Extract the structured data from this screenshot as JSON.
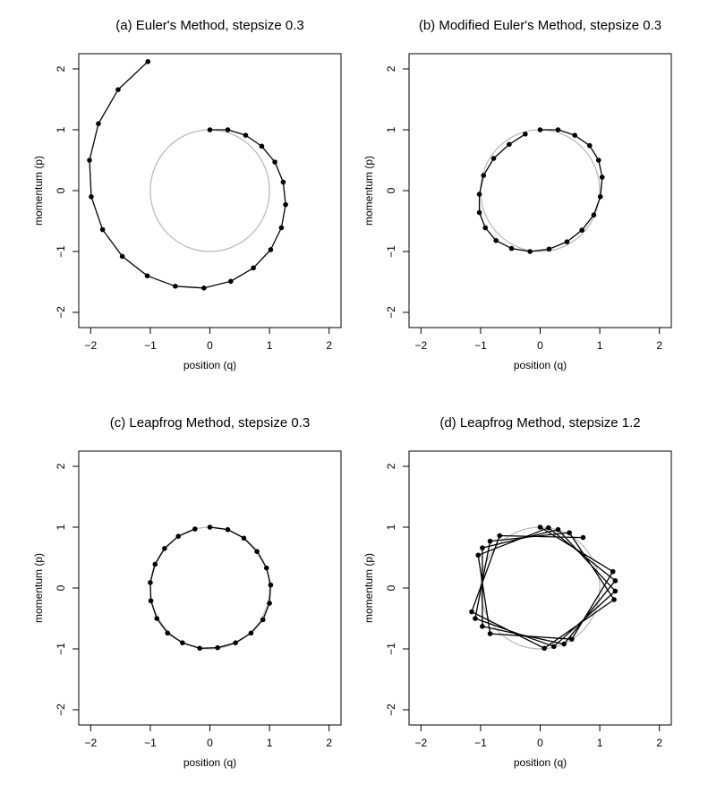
{
  "chart_data": [
    {
      "type": "line",
      "title": "(a) Euler's Method, stepsize 0.3",
      "xlabel": "position (q)",
      "ylabel": "momentum (p)",
      "xlim": [
        -2.2,
        2.2
      ],
      "ylim": [
        -2.25,
        2.25
      ],
      "x_ticks": [
        -2,
        -1,
        0,
        1,
        2
      ],
      "y_ticks": [
        -2,
        -1,
        0,
        1,
        2
      ],
      "x_tick_labels": [
        "−2",
        "−1",
        "0",
        "1",
        "2"
      ],
      "y_tick_labels": [
        "−2",
        "−1",
        "0",
        "1",
        "2"
      ],
      "reference_circle": {
        "radius": 1,
        "color": "#bbbbbb"
      },
      "series": [
        {
          "color": "#000000",
          "points": [
            [
              0.0,
              1.0
            ],
            [
              0.3,
              1.0
            ],
            [
              0.6,
              0.91
            ],
            [
              0.87,
              0.73
            ],
            [
              1.09,
              0.47
            ],
            [
              1.23,
              0.14
            ],
            [
              1.27,
              -0.23
            ],
            [
              1.2,
              -0.61
            ],
            [
              1.02,
              -0.97
            ],
            [
              0.73,
              -1.27
            ],
            [
              0.35,
              -1.49
            ],
            [
              -0.1,
              -1.6
            ],
            [
              -0.58,
              -1.57
            ],
            [
              -1.05,
              -1.4
            ],
            [
              -1.47,
              -1.08
            ],
            [
              -1.8,
              -0.64
            ],
            [
              -1.99,
              -0.1
            ],
            [
              -2.02,
              0.5
            ],
            [
              -1.87,
              1.1
            ],
            [
              -1.54,
              1.66
            ],
            [
              -1.04,
              2.12
            ]
          ]
        }
      ]
    },
    {
      "type": "line",
      "title": "(b) Modified Euler's Method, stepsize 0.3",
      "xlabel": "position (q)",
      "ylabel": "momentum (p)",
      "xlim": [
        -2.2,
        2.2
      ],
      "ylim": [
        -2.25,
        2.25
      ],
      "x_ticks": [
        -2,
        -1,
        0,
        1,
        2
      ],
      "y_ticks": [
        -2,
        -1,
        0,
        1,
        2
      ],
      "x_tick_labels": [
        "−2",
        "−1",
        "0",
        "1",
        "2"
      ],
      "y_tick_labels": [
        "−2",
        "−1",
        "0",
        "1",
        "2"
      ],
      "reference_circle": {
        "radius": 1,
        "color": "#bbbbbb"
      },
      "series": [
        {
          "color": "#000000",
          "points": [
            [
              0.0,
              1.0
            ],
            [
              0.3,
              1.0
            ],
            [
              0.58,
              0.91
            ],
            [
              0.83,
              0.74
            ],
            [
              0.98,
              0.5
            ],
            [
              1.04,
              0.22
            ],
            [
              1.01,
              -0.1
            ],
            [
              0.9,
              -0.4
            ],
            [
              0.7,
              -0.65
            ],
            [
              0.45,
              -0.84
            ],
            [
              0.15,
              -0.96
            ],
            [
              -0.17,
              -1.0
            ],
            [
              -0.48,
              -0.95
            ],
            [
              -0.74,
              -0.82
            ],
            [
              -0.92,
              -0.61
            ],
            [
              -1.02,
              -0.36
            ],
            [
              -1.02,
              -0.06
            ],
            [
              -0.95,
              0.25
            ],
            [
              -0.78,
              0.53
            ],
            [
              -0.52,
              0.76
            ],
            [
              -0.25,
              0.93
            ]
          ]
        }
      ]
    },
    {
      "type": "line",
      "title": "(c) Leapfrog Method, stepsize 0.3",
      "xlabel": "position (q)",
      "ylabel": "momentum (p)",
      "xlim": [
        -2.2,
        2.2
      ],
      "ylim": [
        -2.25,
        2.25
      ],
      "x_ticks": [
        -2,
        -1,
        0,
        1,
        2
      ],
      "y_ticks": [
        -2,
        -1,
        0,
        1,
        2
      ],
      "x_tick_labels": [
        "−2",
        "−1",
        "0",
        "1",
        "2"
      ],
      "y_tick_labels": [
        "−2",
        "−1",
        "0",
        "1",
        "2"
      ],
      "reference_circle": {
        "radius": 1,
        "color": "#bbbbbb"
      },
      "series": [
        {
          "color": "#000000",
          "points": [
            [
              0.0,
              1.0
            ],
            [
              0.3,
              0.96
            ],
            [
              0.57,
              0.82
            ],
            [
              0.79,
              0.6
            ],
            [
              0.95,
              0.33
            ],
            [
              1.02,
              0.05
            ],
            [
              1.0,
              -0.25
            ],
            [
              0.89,
              -0.52
            ],
            [
              0.69,
              -0.74
            ],
            [
              0.43,
              -0.9
            ],
            [
              0.13,
              -0.98
            ],
            [
              -0.17,
              -0.99
            ],
            [
              -0.46,
              -0.9
            ],
            [
              -0.71,
              -0.74
            ],
            [
              -0.89,
              -0.5
            ],
            [
              -0.99,
              -0.21
            ],
            [
              -1.0,
              0.09
            ],
            [
              -0.92,
              0.39
            ],
            [
              -0.76,
              0.65
            ],
            [
              -0.53,
              0.85
            ],
            [
              -0.25,
              0.97
            ]
          ]
        }
      ]
    },
    {
      "type": "line",
      "title": "(d) Leapfrog Method, stepsize 1.2",
      "xlabel": "position (q)",
      "ylabel": "momentum (p)",
      "xlim": [
        -2.2,
        2.2
      ],
      "ylim": [
        -2.25,
        2.25
      ],
      "x_ticks": [
        -2,
        -1,
        0,
        1,
        2
      ],
      "y_ticks": [
        -2,
        -1,
        0,
        1,
        2
      ],
      "x_tick_labels": [
        "−2",
        "−1",
        "0",
        "1",
        "2"
      ],
      "y_tick_labels": [
        "−2",
        "−1",
        "0",
        "1",
        "2"
      ],
      "reference_circle": {
        "radius": 1,
        "color": "#bbbbbb"
      },
      "series": [
        {
          "color": "#000000",
          "points": [
            [
              0.0,
              1.0
            ],
            [
              1.22,
              0.27
            ],
            [
              0.53,
              -0.84
            ],
            [
              -0.84,
              -0.75
            ],
            [
              -1.04,
              0.54
            ],
            [
              0.14,
              0.99
            ],
            [
              1.26,
              0.12
            ],
            [
              0.4,
              -0.92
            ],
            [
              -0.97,
              -0.63
            ],
            [
              -0.97,
              0.66
            ],
            [
              0.3,
              0.96
            ],
            [
              1.26,
              -0.05
            ],
            [
              0.23,
              -0.96
            ],
            [
              -1.09,
              -0.5
            ],
            [
              -0.84,
              0.77
            ],
            [
              0.49,
              0.91
            ],
            [
              1.24,
              -0.19
            ],
            [
              0.07,
              -0.99
            ],
            [
              -1.15,
              -0.39
            ],
            [
              -0.68,
              0.86
            ],
            [
              0.72,
              0.83
            ]
          ]
        }
      ]
    }
  ]
}
